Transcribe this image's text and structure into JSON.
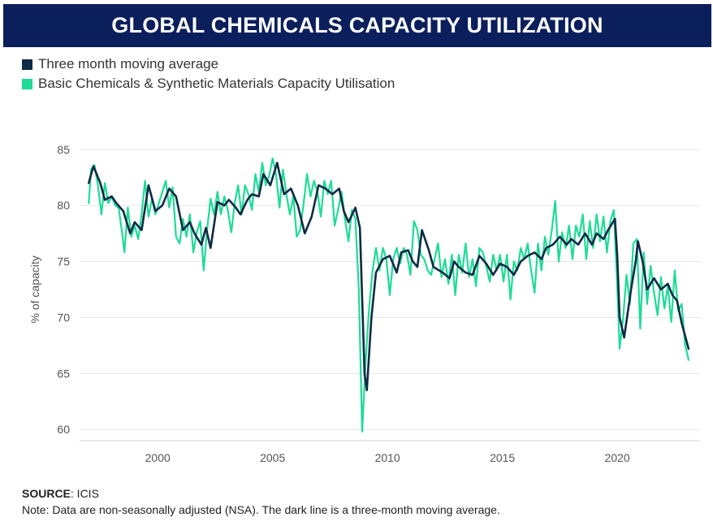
{
  "header": {
    "title": "GLOBAL CHEMICALS CAPACITY UTILIZATION"
  },
  "footer": {
    "source_label": "SOURCE",
    "source_value": ": ICIS",
    "note": "Note: Data are non-seasonally adjusted (NSA). The dark line is a three-month moving average."
  },
  "chart_data": {
    "type": "line",
    "title": "GLOBAL CHEMICALS CAPACITY UTILIZATION",
    "xlabel": "",
    "ylabel": "% of capacity",
    "xlim": [
      1996.6,
      2023.6
    ],
    "ylim": [
      59,
      86
    ],
    "yticks": [
      60,
      65,
      70,
      75,
      80,
      85
    ],
    "xticks": [
      2000,
      2005,
      2010,
      2015,
      2020
    ],
    "grid": "horizontal",
    "legend_position": "top-left",
    "series": [
      {
        "name": "Three month moving average",
        "color": "#0e2a47",
        "points": [
          [
            1997.0,
            82.0
          ],
          [
            1997.2,
            83.5
          ],
          [
            1997.5,
            82.0
          ],
          [
            1997.7,
            80.5
          ],
          [
            1998.0,
            80.8
          ],
          [
            1998.2,
            80.2
          ],
          [
            1998.5,
            79.5
          ],
          [
            1998.8,
            77.5
          ],
          [
            1999.0,
            78.5
          ],
          [
            1999.3,
            77.8
          ],
          [
            1999.6,
            81.8
          ],
          [
            1999.9,
            79.5
          ],
          [
            2000.2,
            80.0
          ],
          [
            2000.5,
            81.5
          ],
          [
            2000.8,
            80.8
          ],
          [
            2001.1,
            77.8
          ],
          [
            2001.4,
            78.5
          ],
          [
            2001.6,
            77.5
          ],
          [
            2001.9,
            76.5
          ],
          [
            2002.1,
            78.0
          ],
          [
            2002.3,
            76.2
          ],
          [
            2002.6,
            80.3
          ],
          [
            2002.9,
            80.0
          ],
          [
            2003.1,
            80.5
          ],
          [
            2003.4,
            79.8
          ],
          [
            2003.6,
            79.2
          ],
          [
            2003.9,
            80.5
          ],
          [
            2004.1,
            81.0
          ],
          [
            2004.4,
            80.8
          ],
          [
            2004.6,
            82.8
          ],
          [
            2004.9,
            81.8
          ],
          [
            2005.2,
            83.8
          ],
          [
            2005.5,
            81.0
          ],
          [
            2005.8,
            81.5
          ],
          [
            2006.1,
            80.0
          ],
          [
            2006.4,
            77.5
          ],
          [
            2006.7,
            79.0
          ],
          [
            2007.0,
            81.8
          ],
          [
            2007.3,
            81.5
          ],
          [
            2007.6,
            81.0
          ],
          [
            2007.9,
            81.5
          ],
          [
            2008.1,
            79.5
          ],
          [
            2008.3,
            78.5
          ],
          [
            2008.6,
            79.8
          ],
          [
            2008.8,
            78.0
          ],
          [
            2009.0,
            65.0
          ],
          [
            2009.1,
            63.5
          ],
          [
            2009.3,
            70.0
          ],
          [
            2009.5,
            74.0
          ],
          [
            2009.8,
            75.2
          ],
          [
            2010.1,
            75.5
          ],
          [
            2010.4,
            74.0
          ],
          [
            2010.6,
            75.8
          ],
          [
            2010.9,
            76.0
          ],
          [
            2011.1,
            75.0
          ],
          [
            2011.3,
            74.5
          ],
          [
            2011.5,
            77.8
          ],
          [
            2011.8,
            76.0
          ],
          [
            2012.0,
            74.5
          ],
          [
            2012.4,
            74.0
          ],
          [
            2012.7,
            73.5
          ],
          [
            2012.9,
            75.0
          ],
          [
            2013.1,
            74.5
          ],
          [
            2013.4,
            74.0
          ],
          [
            2013.7,
            73.8
          ],
          [
            2014.0,
            75.5
          ],
          [
            2014.3,
            74.8
          ],
          [
            2014.6,
            73.8
          ],
          [
            2014.9,
            74.8
          ],
          [
            2015.2,
            74.5
          ],
          [
            2015.5,
            73.8
          ],
          [
            2015.8,
            75.0
          ],
          [
            2016.1,
            75.5
          ],
          [
            2016.4,
            75.8
          ],
          [
            2016.7,
            75.2
          ],
          [
            2016.9,
            76.2
          ],
          [
            2017.2,
            76.5
          ],
          [
            2017.5,
            77.2
          ],
          [
            2017.8,
            76.5
          ],
          [
            2018.0,
            77.0
          ],
          [
            2018.3,
            76.5
          ],
          [
            2018.6,
            77.5
          ],
          [
            2018.9,
            76.5
          ],
          [
            2019.1,
            77.5
          ],
          [
            2019.4,
            77.0
          ],
          [
            2019.6,
            77.8
          ],
          [
            2019.9,
            78.8
          ],
          [
            2020.0,
            75.5
          ],
          [
            2020.1,
            70.0
          ],
          [
            2020.3,
            68.2
          ],
          [
            2020.6,
            72.5
          ],
          [
            2020.8,
            75.0
          ],
          [
            2020.9,
            76.8
          ],
          [
            2021.1,
            75.0
          ],
          [
            2021.3,
            72.5
          ],
          [
            2021.6,
            73.5
          ],
          [
            2021.9,
            72.5
          ],
          [
            2022.2,
            73.0
          ],
          [
            2022.4,
            72.0
          ],
          [
            2022.6,
            71.5
          ],
          [
            2022.8,
            69.5
          ],
          [
            2023.0,
            68.0
          ],
          [
            2023.1,
            67.2
          ]
        ]
      },
      {
        "name": "Basic Chemicals & Synthetic Materials Capacity Utilisation",
        "color": "#1edc96",
        "points": [
          [
            1997.0,
            80.2
          ],
          [
            1997.1,
            83.2
          ],
          [
            1997.25,
            83.6
          ],
          [
            1997.4,
            81.8
          ],
          [
            1997.55,
            79.2
          ],
          [
            1997.7,
            82.0
          ],
          [
            1997.85,
            80.2
          ],
          [
            1998.0,
            80.8
          ],
          [
            1998.15,
            80.0
          ],
          [
            1998.3,
            79.8
          ],
          [
            1998.45,
            77.6
          ],
          [
            1998.55,
            75.8
          ],
          [
            1998.7,
            79.8
          ],
          [
            1998.85,
            77.2
          ],
          [
            1999.0,
            78.2
          ],
          [
            1999.15,
            77.0
          ],
          [
            1999.3,
            79.2
          ],
          [
            1999.45,
            82.2
          ],
          [
            1999.6,
            79.0
          ],
          [
            1999.75,
            80.6
          ],
          [
            1999.9,
            79.2
          ],
          [
            2000.05,
            80.2
          ],
          [
            2000.2,
            81.2
          ],
          [
            2000.35,
            82.2
          ],
          [
            2000.5,
            79.8
          ],
          [
            2000.65,
            81.6
          ],
          [
            2000.8,
            77.2
          ],
          [
            2000.95,
            76.6
          ],
          [
            2001.1,
            78.8
          ],
          [
            2001.25,
            77.2
          ],
          [
            2001.4,
            79.2
          ],
          [
            2001.55,
            75.8
          ],
          [
            2001.7,
            77.6
          ],
          [
            2001.85,
            78.6
          ],
          [
            2002.0,
            74.2
          ],
          [
            2002.15,
            77.8
          ],
          [
            2002.3,
            80.6
          ],
          [
            2002.45,
            79.2
          ],
          [
            2002.6,
            81.2
          ],
          [
            2002.75,
            79.2
          ],
          [
            2002.9,
            80.8
          ],
          [
            2003.05,
            79.6
          ],
          [
            2003.2,
            77.6
          ],
          [
            2003.35,
            80.2
          ],
          [
            2003.5,
            81.8
          ],
          [
            2003.65,
            79.2
          ],
          [
            2003.8,
            81.8
          ],
          [
            2003.95,
            81.0
          ],
          [
            2004.1,
            79.6
          ],
          [
            2004.25,
            82.8
          ],
          [
            2004.4,
            81.2
          ],
          [
            2004.55,
            83.8
          ],
          [
            2004.7,
            81.8
          ],
          [
            2004.85,
            82.6
          ],
          [
            2005.0,
            84.2
          ],
          [
            2005.15,
            82.8
          ],
          [
            2005.3,
            79.8
          ],
          [
            2005.45,
            83.2
          ],
          [
            2005.6,
            81.0
          ],
          [
            2005.75,
            79.2
          ],
          [
            2005.9,
            80.8
          ],
          [
            2006.05,
            77.2
          ],
          [
            2006.2,
            77.8
          ],
          [
            2006.35,
            80.2
          ],
          [
            2006.5,
            82.8
          ],
          [
            2006.65,
            80.8
          ],
          [
            2006.8,
            82.2
          ],
          [
            2006.95,
            81.2
          ],
          [
            2007.1,
            79.0
          ],
          [
            2007.25,
            82.2
          ],
          [
            2007.4,
            81.0
          ],
          [
            2007.55,
            82.2
          ],
          [
            2007.7,
            78.2
          ],
          [
            2007.85,
            79.6
          ],
          [
            2008.0,
            81.2
          ],
          [
            2008.15,
            78.8
          ],
          [
            2008.3,
            76.8
          ],
          [
            2008.45,
            79.6
          ],
          [
            2008.6,
            78.8
          ],
          [
            2008.75,
            72.6
          ],
          [
            2008.9,
            59.8
          ],
          [
            2009.05,
            66.2
          ],
          [
            2009.2,
            70.8
          ],
          [
            2009.35,
            74.2
          ],
          [
            2009.5,
            76.2
          ],
          [
            2009.65,
            74.2
          ],
          [
            2009.8,
            76.2
          ],
          [
            2009.95,
            75.2
          ],
          [
            2010.1,
            72.0
          ],
          [
            2010.25,
            75.2
          ],
          [
            2010.4,
            76.2
          ],
          [
            2010.55,
            74.8
          ],
          [
            2010.7,
            76.2
          ],
          [
            2010.85,
            75.6
          ],
          [
            2011.0,
            73.8
          ],
          [
            2011.15,
            78.6
          ],
          [
            2011.3,
            77.8
          ],
          [
            2011.45,
            75.6
          ],
          [
            2011.6,
            75.2
          ],
          [
            2011.75,
            74.2
          ],
          [
            2011.9,
            73.8
          ],
          [
            2012.05,
            75.2
          ],
          [
            2012.2,
            76.6
          ],
          [
            2012.35,
            73.6
          ],
          [
            2012.5,
            75.2
          ],
          [
            2012.65,
            73.0
          ],
          [
            2012.8,
            75.6
          ],
          [
            2012.95,
            72.0
          ],
          [
            2013.1,
            75.6
          ],
          [
            2013.25,
            74.0
          ],
          [
            2013.4,
            76.6
          ],
          [
            2013.55,
            73.6
          ],
          [
            2013.7,
            75.2
          ],
          [
            2013.85,
            72.8
          ],
          [
            2014.0,
            76.2
          ],
          [
            2014.15,
            75.8
          ],
          [
            2014.3,
            74.6
          ],
          [
            2014.45,
            73.2
          ],
          [
            2014.6,
            75.6
          ],
          [
            2014.75,
            74.2
          ],
          [
            2014.9,
            75.6
          ],
          [
            2015.05,
            73.2
          ],
          [
            2015.2,
            75.6
          ],
          [
            2015.35,
            71.6
          ],
          [
            2015.5,
            75.0
          ],
          [
            2015.65,
            74.2
          ],
          [
            2015.8,
            76.2
          ],
          [
            2015.95,
            75.2
          ],
          [
            2016.1,
            76.6
          ],
          [
            2016.25,
            74.2
          ],
          [
            2016.4,
            72.2
          ],
          [
            2016.55,
            76.6
          ],
          [
            2016.7,
            74.2
          ],
          [
            2016.85,
            77.2
          ],
          [
            2017.0,
            75.6
          ],
          [
            2017.15,
            77.8
          ],
          [
            2017.3,
            80.4
          ],
          [
            2017.45,
            75.0
          ],
          [
            2017.6,
            77.6
          ],
          [
            2017.75,
            76.2
          ],
          [
            2017.9,
            78.2
          ],
          [
            2018.05,
            75.2
          ],
          [
            2018.2,
            78.2
          ],
          [
            2018.35,
            77.2
          ],
          [
            2018.5,
            79.2
          ],
          [
            2018.65,
            75.2
          ],
          [
            2018.8,
            78.6
          ],
          [
            2018.95,
            76.2
          ],
          [
            2019.1,
            79.2
          ],
          [
            2019.25,
            76.8
          ],
          [
            2019.4,
            79.0
          ],
          [
            2019.55,
            75.8
          ],
          [
            2019.7,
            78.6
          ],
          [
            2019.85,
            79.6
          ],
          [
            2020.0,
            72.8
          ],
          [
            2020.1,
            67.2
          ],
          [
            2020.25,
            69.8
          ],
          [
            2020.4,
            73.8
          ],
          [
            2020.55,
            71.2
          ],
          [
            2020.7,
            76.6
          ],
          [
            2020.85,
            77.0
          ],
          [
            2021.0,
            69.0
          ],
          [
            2021.15,
            75.8
          ],
          [
            2021.3,
            71.2
          ],
          [
            2021.45,
            74.6
          ],
          [
            2021.6,
            72.2
          ],
          [
            2021.75,
            70.2
          ],
          [
            2021.9,
            73.6
          ],
          [
            2022.05,
            70.8
          ],
          [
            2022.2,
            72.8
          ],
          [
            2022.35,
            69.6
          ],
          [
            2022.5,
            74.2
          ],
          [
            2022.65,
            70.6
          ],
          [
            2022.8,
            71.2
          ],
          [
            2022.95,
            67.6
          ],
          [
            2023.1,
            66.2
          ]
        ]
      }
    ]
  }
}
